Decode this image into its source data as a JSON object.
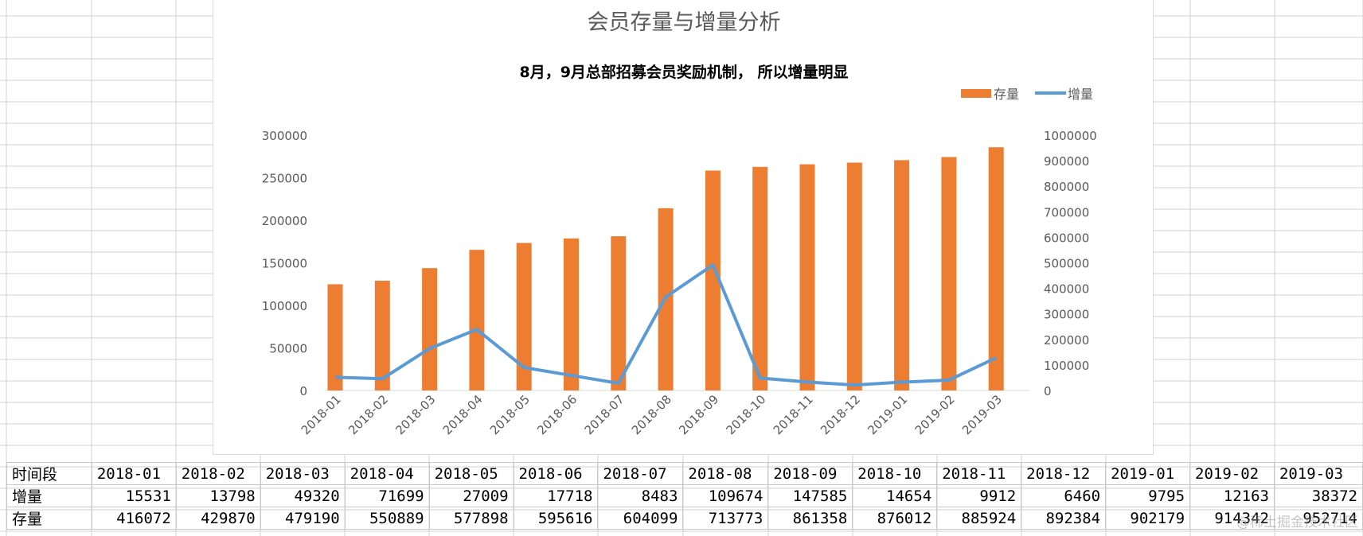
{
  "chart_data": {
    "type": "bar+line",
    "title": "会员存量与增量分析",
    "subtitle": "8月，9月总部招募会员奖励机制， 所以增量明显",
    "categories": [
      "2018-01",
      "2018-02",
      "2018-03",
      "2018-04",
      "2018-05",
      "2018-06",
      "2018-07",
      "2018-08",
      "2018-09",
      "2018-10",
      "2018-11",
      "2018-12",
      "2019-01",
      "2019-02",
      "2019-03"
    ],
    "series": [
      {
        "name": "存量",
        "type": "bar",
        "axis": "right",
        "color": "#ED7D31",
        "values": [
          416072,
          429870,
          479190,
          550889,
          577898,
          595616,
          604099,
          713773,
          861358,
          876012,
          885924,
          892384,
          902179,
          914342,
          952714
        ]
      },
      {
        "name": "增量",
        "type": "line",
        "axis": "left",
        "color": "#5B9BD5",
        "values": [
          15531,
          13798,
          49320,
          71699,
          27009,
          17718,
          8483,
          109674,
          147585,
          14654,
          9912,
          6460,
          9795,
          12163,
          38372
        ]
      }
    ],
    "left_axis": {
      "min": 0,
      "max": 300000,
      "step": 50000,
      "ticks": [
        "0",
        "50000",
        "100000",
        "150000",
        "200000",
        "250000",
        "300000"
      ]
    },
    "right_axis": {
      "min": 0,
      "max": 1000000,
      "step": 100000,
      "ticks": [
        "0",
        "100000",
        "200000",
        "300000",
        "400000",
        "500000",
        "600000",
        "700000",
        "800000",
        "900000",
        "1000000"
      ]
    },
    "legend_position": "top-right",
    "grid": false
  },
  "table": {
    "header_label": "时间段",
    "row_labels": [
      "增量",
      "存量"
    ]
  },
  "watermark": "@稀土掘金技术社区"
}
